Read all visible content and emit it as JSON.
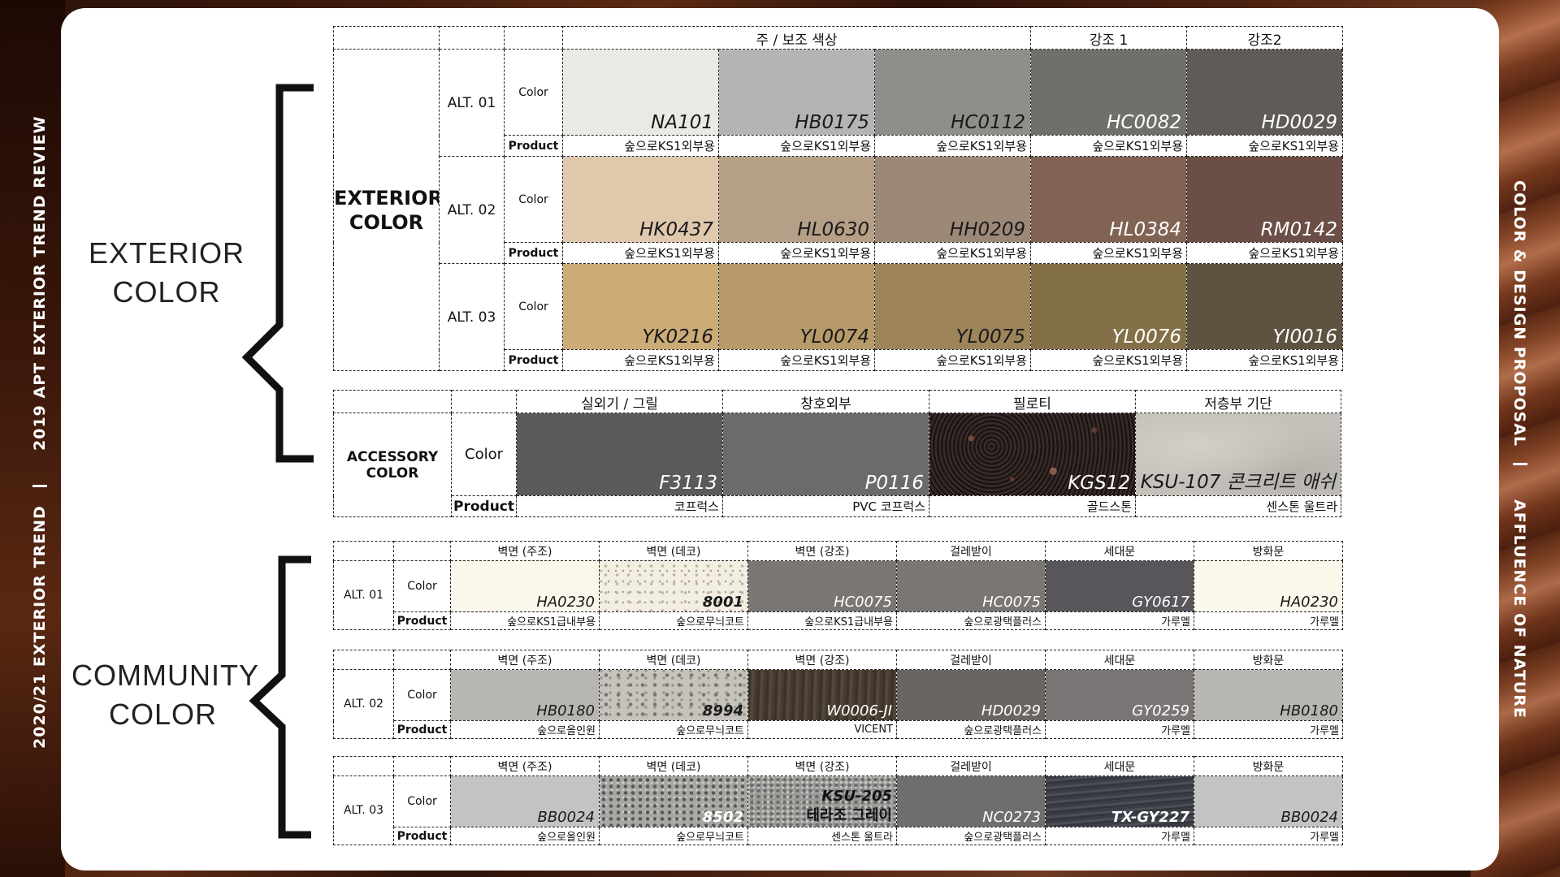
{
  "side_left": {
    "top_text": "2019  APT  EXTERIOR  TREND  REVIEW",
    "bottom_text": "2020/21  EXTERIOR  TREND"
  },
  "side_right": {
    "top_text": "COLOR  &  DESIGN  PROPOSAL",
    "bottom_text": "AFFLUENCE OF NATURE"
  },
  "sections": {
    "exterior_label_1": "EXTERIOR",
    "exterior_label_2": "COLOR",
    "community_label_1": "COMMUNITY",
    "community_label_2": "COLOR"
  },
  "exterior": {
    "row_title_1": "EXTERIOR",
    "row_title_2": "COLOR",
    "header_main": "주 / 보조 색상",
    "header_accent1": "강조 1",
    "header_accent2": "강조2",
    "color_label": "Color",
    "product_label": "Product",
    "alts": [
      {
        "label": "ALT. 01",
        "swatches": [
          {
            "code": "NA101",
            "color": "#ebe9e5",
            "text": "dark",
            "product": "숲으로KS1외부용"
          },
          {
            "code": "HB0175",
            "color": "#b4b4b6",
            "text": "dark",
            "product": "숲으로KS1외부용"
          },
          {
            "code": "HC0112",
            "color": "#8e8e8a",
            "text": "dark",
            "product": "숲으로KS1외부용"
          },
          {
            "code": "HC0082",
            "color": "#6f6f6b",
            "text": "light",
            "product": "숲으로KS1외부용"
          },
          {
            "code": "HD0029",
            "color": "#5f5c58",
            "text": "light",
            "product": "숲으로KS1외부용"
          }
        ]
      },
      {
        "label": "ALT. 02",
        "swatches": [
          {
            "code": "HK0437",
            "color": "#e0c8ad",
            "text": "dark",
            "product": "숲으로KS1외부용"
          },
          {
            "code": "HL0630",
            "color": "#b59f86",
            "text": "dark",
            "product": "숲으로KS1외부용"
          },
          {
            "code": "HH0209",
            "color": "#9c8876",
            "text": "dark",
            "product": "숲으로KS1외부용"
          },
          {
            "code": "HL0384",
            "color": "#806352",
            "text": "light",
            "product": "숲으로KS1외부용"
          },
          {
            "code": "RM0142",
            "color": "#6b4e45",
            "text": "light",
            "product": "숲으로KS1외부용"
          }
        ]
      },
      {
        "label": "ALT. 03",
        "swatches": [
          {
            "code": "YK0216",
            "color": "#ccab77",
            "text": "dark",
            "product": "숲으로KS1외부용"
          },
          {
            "code": "YL0074",
            "color": "#b69a6a",
            "text": "dark",
            "product": "숲으로KS1외부용"
          },
          {
            "code": "YL0075",
            "color": "#9d8559",
            "text": "dark",
            "product": "숲으로KS1외부용"
          },
          {
            "code": "YL0076",
            "color": "#837048",
            "text": "light",
            "product": "숲으로KS1외부용"
          },
          {
            "code": "YI0016",
            "color": "#5e5240",
            "text": "light",
            "product": "숲으로KS1외부용"
          }
        ]
      }
    ]
  },
  "accessory": {
    "row_title_1": "ACCESSORY",
    "row_title_2": "COLOR",
    "color_label": "Color",
    "product_label": "Product",
    "headers": [
      "실외기 / 그릴",
      "창호외부",
      "필로티",
      "저층부 기단"
    ],
    "swatches": [
      {
        "code": "F3113",
        "color": "#5b5a58",
        "text": "light",
        "product": "코프럭스"
      },
      {
        "code": "P0116",
        "color": "#6c6b69",
        "text": "light",
        "product": "PVC 코프럭스"
      },
      {
        "code": "KGS12",
        "color": "#2a2220",
        "text": "light",
        "product": "골드스톤",
        "texture": "granite"
      },
      {
        "code": "KSU-107 콘크리트 애쉬",
        "color": "#c4c1bb",
        "text": "dark",
        "product": "센스톤 울트라",
        "texture": "concrete"
      }
    ]
  },
  "community": {
    "color_label": "Color",
    "product_label": "Product",
    "headers": [
      "벽면 (주조)",
      "벽면 (데코)",
      "벽면 (강조)",
      "걸레받이",
      "세대문",
      "방화문"
    ],
    "alts": [
      {
        "label": "ALT. 01",
        "swatches": [
          {
            "code": "HA0230",
            "color": "#fbf7ea",
            "text": "dark",
            "product": "숲으로KS1급내부용"
          },
          {
            "code": "8001",
            "color": "#f3eee2",
            "text": "dark",
            "bold": true,
            "product": "숲으로무늬코트",
            "texture": "speck-light"
          },
          {
            "code": "HC0075",
            "color": "#7a7673",
            "text": "light",
            "product": "숲으로KS1급내부용"
          },
          {
            "code": "HC0075",
            "color": "#7a7673",
            "text": "light",
            "product": "숲으로광택플러스"
          },
          {
            "code": "GY0617",
            "color": "#58565a",
            "text": "light",
            "product": "가루멜"
          },
          {
            "code": "HA0230",
            "color": "#fbf7ea",
            "text": "dark",
            "product": "가루멜"
          }
        ]
      },
      {
        "label": "ALT. 02",
        "swatches": [
          {
            "code": "HB0180",
            "color": "#b7b6b3",
            "text": "dark",
            "product": "숲으로올인원"
          },
          {
            "code": "8994",
            "color": "#c6c3bd",
            "text": "dark",
            "bold": true,
            "product": "숲으로무늬코트",
            "texture": "speck-mid"
          },
          {
            "code": "W0006-JI",
            "color": "#4a3f33",
            "text": "light",
            "product": "VICENT",
            "texture": "wood"
          },
          {
            "code": "HD0029",
            "color": "#6a6563",
            "text": "light",
            "product": "숲으로광택플러스"
          },
          {
            "code": "GY0259",
            "color": "#7a7574",
            "text": "light",
            "product": "가루멜"
          },
          {
            "code": "HB0180",
            "color": "#b7b6b3",
            "text": "dark",
            "product": "가루멜"
          }
        ]
      },
      {
        "label": "ALT. 03",
        "swatches": [
          {
            "code": "BB0024",
            "color": "#c3c3c3",
            "text": "dark",
            "product": "숲으로올인원"
          },
          {
            "code": "8502",
            "color": "#a9a7a4",
            "text": "light",
            "bold": true,
            "product": "숲으로무늬코트",
            "texture": "speck-dark"
          },
          {
            "code": "KSU-205",
            "code2": "테라조 그레이",
            "color": "#9b9a98",
            "text": "dark",
            "bold": true,
            "product": "센스톤 울트라",
            "texture": "terrazzo"
          },
          {
            "code": "NC0273",
            "color": "#6f6e6c",
            "text": "light",
            "product": "숲으로광택플러스"
          },
          {
            "code": "TX-GY227",
            "color": "#3d3f47",
            "text": "light",
            "bold": true,
            "product": "가루멜",
            "texture": "metal"
          },
          {
            "code": "BB0024",
            "color": "#c3c3c3",
            "text": "dark",
            "product": "가루멜"
          }
        ]
      }
    ]
  }
}
